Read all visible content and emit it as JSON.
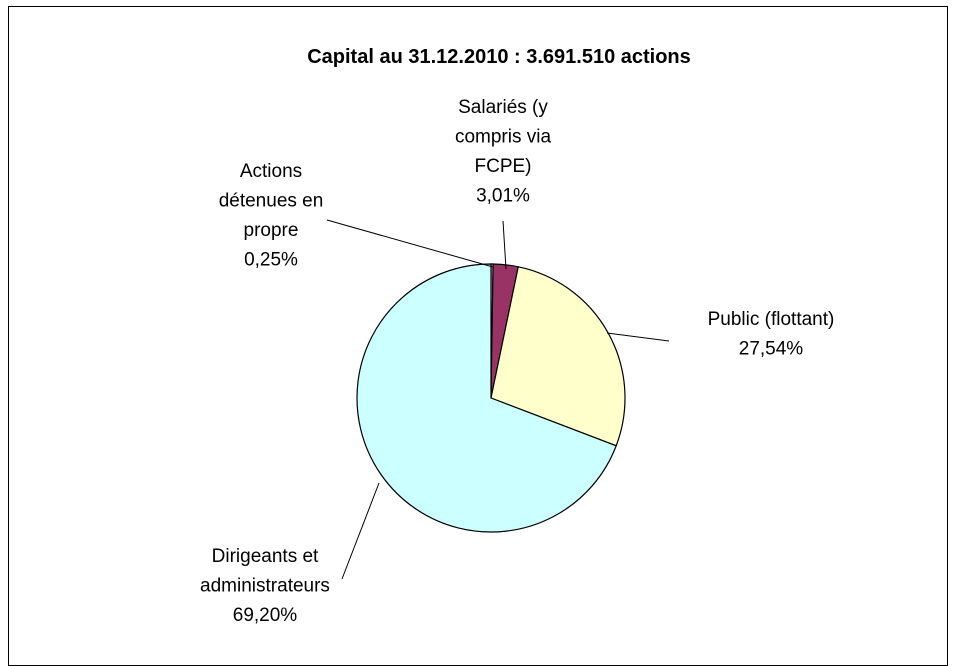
{
  "chart_data": {
    "type": "pie",
    "title": "Capital au 31.12.2010 : 3.691.510 actions",
    "slices": [
      {
        "label_lines": [
          "Actions",
          "détenues en",
          "propre"
        ],
        "value": 0.25,
        "value_label": "0,25%",
        "color": "#d6c0d6"
      },
      {
        "label_lines": [
          "Salariés (y",
          "compris via",
          "FCPE)"
        ],
        "value": 3.01,
        "value_label": "3,01%",
        "color": "#993366"
      },
      {
        "label_lines": [
          "Public (flottant)"
        ],
        "value": 27.54,
        "value_label": "27,54%",
        "color": "#ffffcc"
      },
      {
        "label_lines": [
          "Dirigeants et",
          "administrateurs"
        ],
        "value": 69.2,
        "value_label": "69,20%",
        "color": "#ccffff"
      }
    ]
  }
}
